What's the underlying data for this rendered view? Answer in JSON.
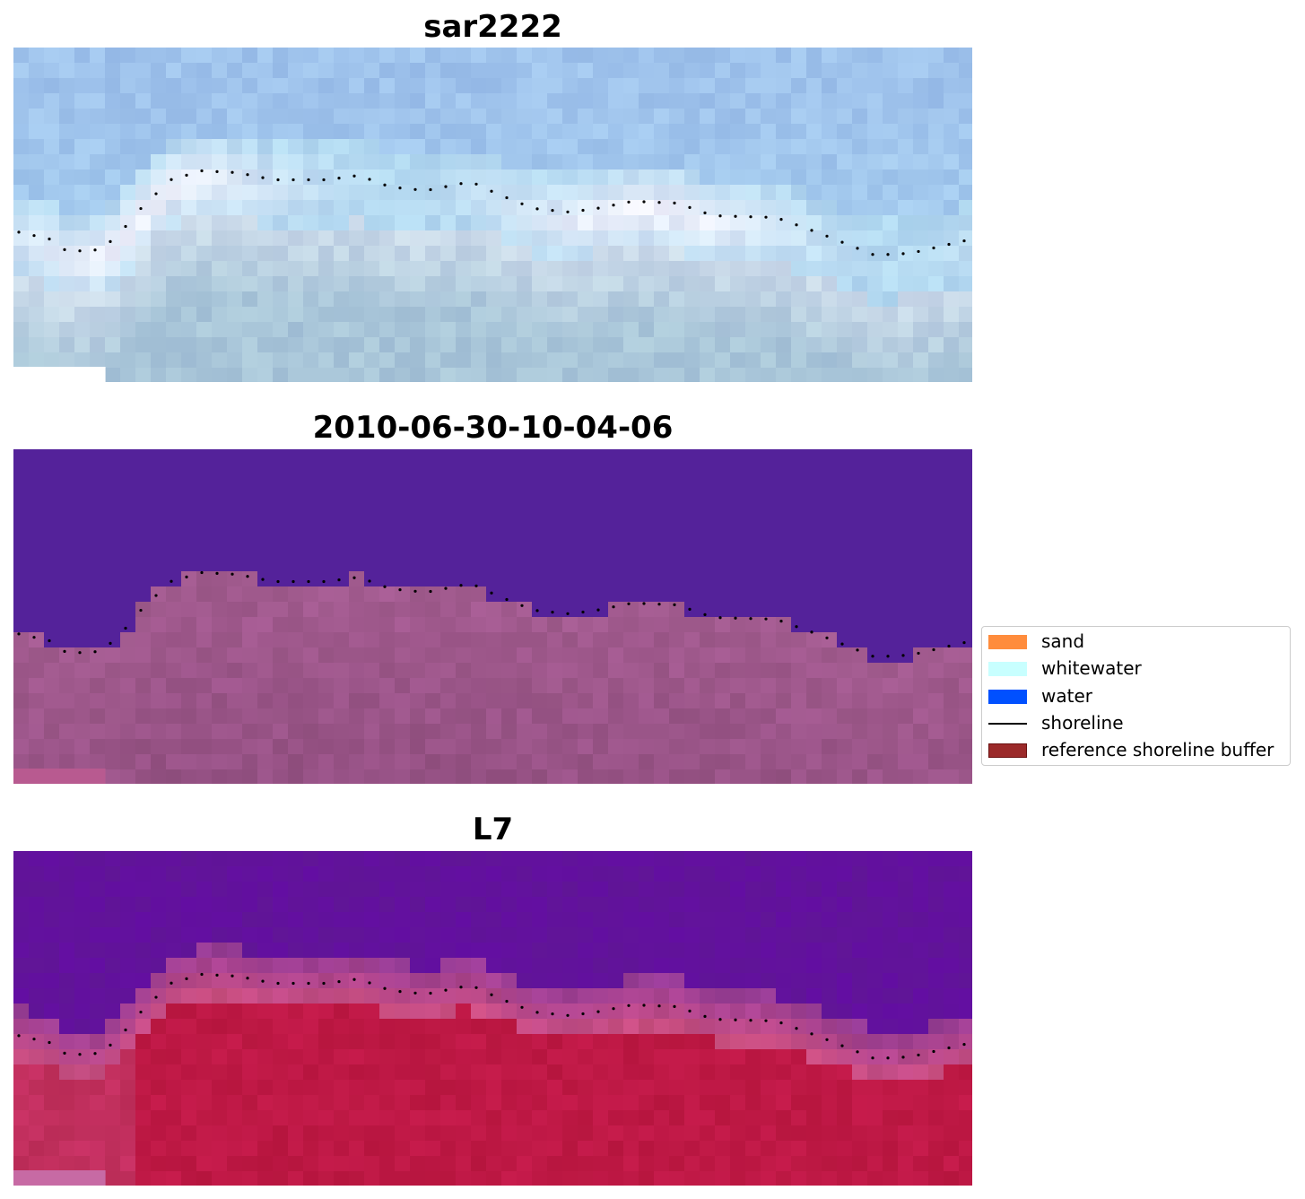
{
  "panels": [
    {
      "title": "sar2222"
    },
    {
      "title": "2010-06-30-10-04-06"
    },
    {
      "title": "L7"
    }
  ],
  "legend": {
    "items": [
      {
        "label": "sand",
        "kind": "patch",
        "color": "#ff8c3c"
      },
      {
        "label": "whitewater",
        "kind": "patch",
        "color": "#c8ffff"
      },
      {
        "label": "water",
        "kind": "patch",
        "color": "#0050ff"
      },
      {
        "label": "shoreline",
        "kind": "line",
        "color": "#000000"
      },
      {
        "label": "reference shoreline buffer",
        "kind": "patch",
        "color": "#9b2a2a",
        "edge": "#6b1111"
      }
    ]
  },
  "colors": {
    "rgb_sky": "#9fc3ec",
    "rgb_whitewater": "#f4f2fb",
    "rgb_beach": "#a9c6d9",
    "ndwi_water": "#54229a",
    "ndwi_land": "#a35b8f",
    "swir_water": "#6a1aa0",
    "swir_land": "#c01a48"
  }
}
